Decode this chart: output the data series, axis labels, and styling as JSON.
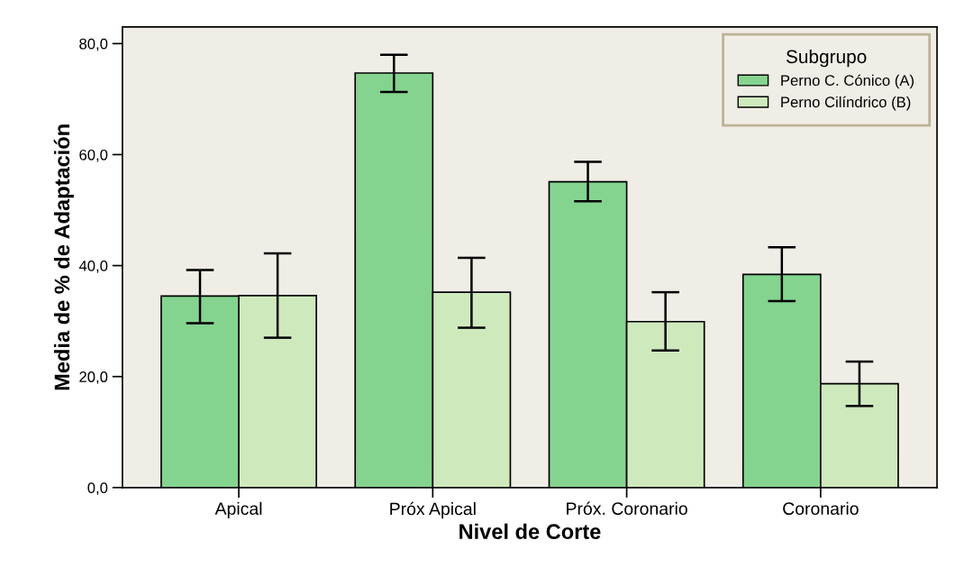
{
  "chart_data": {
    "type": "bar",
    "xlabel": "Nivel de Corte",
    "ylabel": "Media de % de Adaptación",
    "legend_title": "Subgrupo",
    "categories": [
      "Apical",
      "Próx Apical",
      "Próx. Coronario",
      "Coronario"
    ],
    "series": [
      {
        "name": "Perno C. Cónico (A)",
        "color": "#84d490",
        "values": [
          34.5,
          74.7,
          55.1,
          38.4
        ],
        "errors": [
          [
            29.6,
            39.2
          ],
          [
            71.3,
            78.0
          ],
          [
            51.6,
            58.7
          ],
          [
            33.6,
            43.3
          ]
        ]
      },
      {
        "name": "Perno Cilíndrico (B)",
        "color": "#ceeabd",
        "values": [
          34.6,
          35.2,
          29.9,
          18.7
        ],
        "errors": [
          [
            27.0,
            42.2
          ],
          [
            28.8,
            41.4
          ],
          [
            24.7,
            35.2
          ],
          [
            14.7,
            22.7
          ]
        ]
      }
    ],
    "ylim": [
      0,
      83
    ],
    "yticks": [
      {
        "value": 0,
        "label": "0,0"
      },
      {
        "value": 20,
        "label": "20,0"
      },
      {
        "value": 40,
        "label": "40,0"
      },
      {
        "value": 60,
        "label": "60,0"
      },
      {
        "value": 80,
        "label": "80,0"
      }
    ],
    "grid": false,
    "legend": "top right"
  }
}
